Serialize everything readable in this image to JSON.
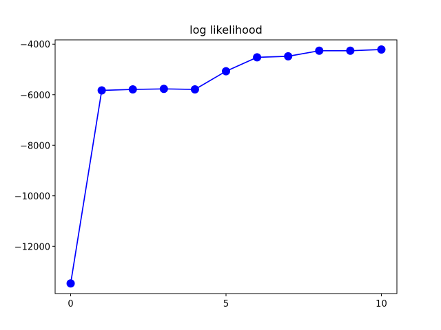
{
  "chart_data": {
    "type": "line",
    "title": "log likelihood",
    "xlabel": "",
    "ylabel": "",
    "x": [
      0,
      1,
      2,
      3,
      4,
      5,
      6,
      7,
      8,
      9,
      10
    ],
    "series": [
      {
        "name": "log likelihood",
        "values": [
          -13470,
          -5830,
          -5790,
          -5770,
          -5790,
          -5070,
          -4520,
          -4480,
          -4260,
          -4260,
          -4210
        ],
        "color": "#0000ff",
        "marker": "circle"
      }
    ],
    "xlim": [
      -0.5,
      10.5
    ],
    "ylim": [
      -13870,
      -3830
    ],
    "xticks": [
      0,
      5,
      10
    ],
    "yticks": [
      -12000,
      -10000,
      -8000,
      -6000,
      -4000
    ],
    "xtick_labels": [
      "0",
      "5",
      "10"
    ],
    "ytick_labels": [
      "−12000",
      "−10000",
      "−8000",
      "−6000",
      "−4000"
    ],
    "grid": false,
    "legend": "none"
  }
}
